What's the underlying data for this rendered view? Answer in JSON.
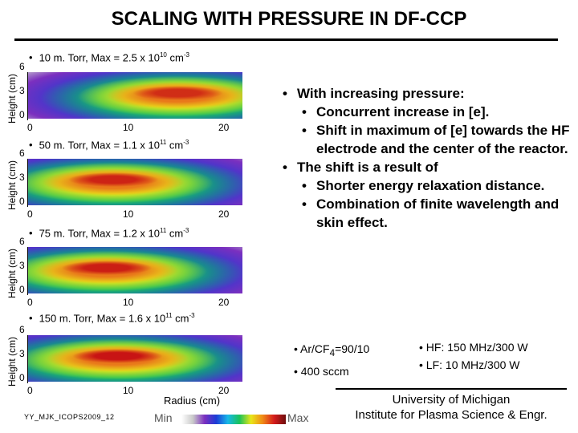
{
  "title": "SCALING WITH  PRESSURE IN DF-CCP",
  "bullet_glyph": "•",
  "colors": {
    "background": "#ffffff",
    "text": "#000000"
  },
  "panels": [
    {
      "pressure_label": "10 m. Torr, Max = 2.5 x 10",
      "exponent": "10",
      "unit": "cm",
      "unit_exp": "-3"
    },
    {
      "pressure_label": "50 m. Torr, Max = 1.1 x 10",
      "exponent": "11",
      "unit": "cm",
      "unit_exp": "-3"
    },
    {
      "pressure_label": "75 m. Torr, Max = 1.2 x 10",
      "exponent": "11",
      "unit": "cm",
      "unit_exp": "-3"
    },
    {
      "pressure_label": "150 m. Torr, Max = 1.6 x 10",
      "exponent": "11",
      "unit": "cm",
      "unit_exp": "-3"
    }
  ],
  "axes": {
    "y_label": "Height (cm)",
    "y_ticks": [
      "6",
      "3",
      "0"
    ],
    "x_ticks": [
      "0",
      "10",
      "20"
    ],
    "x_label": "Radius (cm)"
  },
  "bullets": [
    {
      "level": 1,
      "text": "With increasing pressure:"
    },
    {
      "level": 2,
      "text": "Concurrent increase in [e]."
    },
    {
      "level": 2,
      "text": "Shift in maximum of [e] towards the HF electrode and the center of the reactor."
    },
    {
      "level": 1,
      "text": "The shift is a result of"
    },
    {
      "level": 2,
      "text": "Shorter energy relaxation distance."
    },
    {
      "level": 2,
      "text": "Combination of finite wavelength and skin effect."
    }
  ],
  "conditions": {
    "gas_prefix": "Ar/CF",
    "gas_sub": "4",
    "gas_suffix": "=90/10",
    "flow": "400 sccm",
    "hf": "HF: 150 MHz/300 W",
    "lf": "LF: 10 MHz/300 W"
  },
  "affiliation": {
    "line1": "University of Michigan",
    "line2": "Institute for Plasma Science & Engr."
  },
  "footer_id": "YY_MJK_ICOPS2009_12",
  "colorbar": {
    "min_label": "Min",
    "max_label": "Max"
  }
}
